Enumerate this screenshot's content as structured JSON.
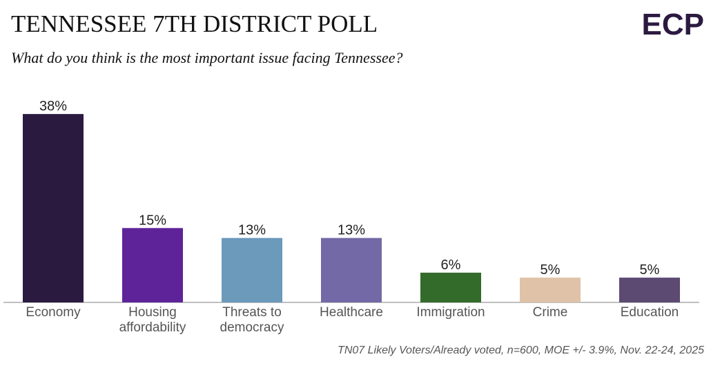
{
  "logo": "ECP",
  "chart_data": {
    "type": "bar",
    "title": "TENNESSEE 7TH DISTRICT POLL",
    "subtitle": "What do you think is the most important issue facing Tennessee?",
    "footnote": "TN07 Likely Voters/Already voted, n=600, MOE +/- 3.9%, Nov. 22-24, 2025",
    "categories": [
      "Economy",
      "Housing\naffordability",
      "Threats to\ndemocracy",
      "Healthcare",
      "Immigration",
      "Crime",
      "Education"
    ],
    "values": [
      38,
      15,
      13,
      13,
      6,
      5,
      5
    ],
    "value_labels": [
      "38%",
      "15%",
      "13%",
      "13%",
      "6%",
      "5%",
      "5%"
    ],
    "colors": [
      "#2b1a40",
      "#5e2399",
      "#6b9aba",
      "#7269a6",
      "#336b2a",
      "#e0c2a8",
      "#5c4a73"
    ]
  }
}
